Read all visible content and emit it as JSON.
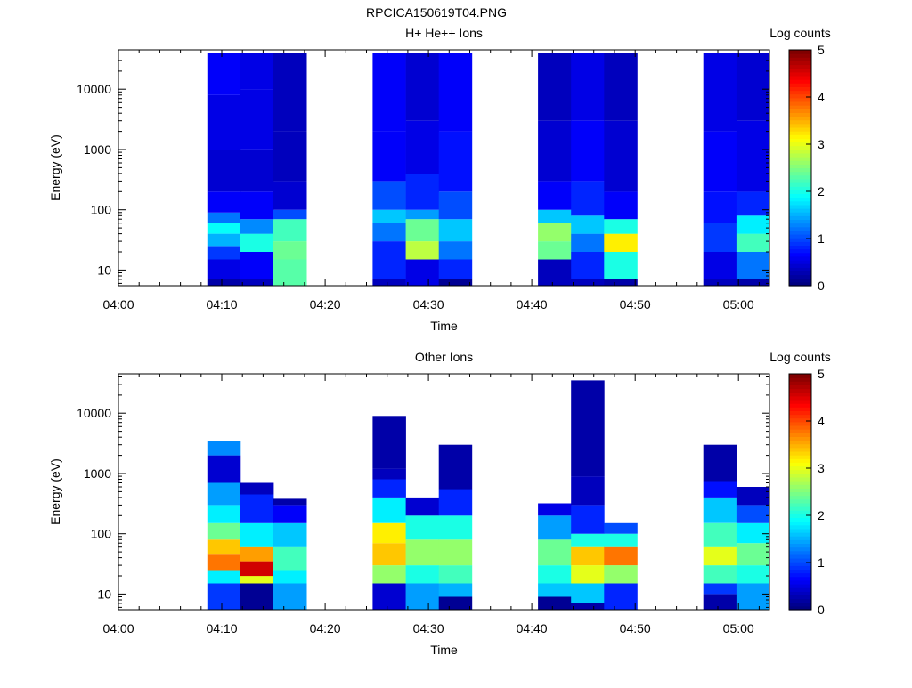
{
  "title": "RPCICA150619T04.PNG",
  "chart_data": [
    {
      "type": "heatmap",
      "title": "H+ He++ Ions",
      "xlabel": "Time",
      "ylabel": "Energy (eV)",
      "yscale": "log",
      "ylim": [
        5.5,
        45000
      ],
      "xlim": [
        "04:00",
        "05:03"
      ],
      "xticks": [
        "04:00",
        "04:10",
        "04:20",
        "04:30",
        "04:40",
        "04:50",
        "05:00"
      ],
      "yticks": [
        "10",
        "100",
        "1000",
        "10000"
      ],
      "colorbar": {
        "label": "Log counts",
        "min": 0,
        "max": 5,
        "ticks": [
          "0",
          "1",
          "2",
          "3",
          "4",
          "5"
        ]
      },
      "columns": [
        {
          "t0": "04:08.6",
          "t1": "04:11.8",
          "bands": [
            [
              7,
              0.2
            ],
            [
              15,
              0.5
            ],
            [
              25,
              0.9
            ],
            [
              40,
              1.5
            ],
            [
              60,
              1.9
            ],
            [
              90,
              1.2
            ],
            [
              200,
              0.6
            ],
            [
              1000,
              0.4
            ],
            [
              8000,
              0.5
            ],
            [
              40000,
              0.6
            ]
          ]
        },
        {
          "t0": "04:11.8",
          "t1": "04:15.0",
          "bands": [
            [
              7,
              0.3
            ],
            [
              20,
              0.6
            ],
            [
              40,
              2.0
            ],
            [
              70,
              1.3
            ],
            [
              200,
              0.6
            ],
            [
              1000,
              0.4
            ],
            [
              10000,
              0.5
            ],
            [
              40000,
              0.5
            ]
          ]
        },
        {
          "t0": "04:15.0",
          "t1": "04:18.2",
          "bands": [
            [
              15,
              2.3
            ],
            [
              30,
              2.4
            ],
            [
              70,
              2.2
            ],
            [
              100,
              1.0
            ],
            [
              300,
              0.4
            ],
            [
              2000,
              0.3
            ],
            [
              40000,
              0.3
            ]
          ]
        },
        {
          "t0": "04:24.6",
          "t1": "04:27.8",
          "bands": [
            [
              7,
              0.3
            ],
            [
              30,
              0.8
            ],
            [
              60,
              1.2
            ],
            [
              100,
              1.6
            ],
            [
              300,
              1.0
            ],
            [
              2000,
              0.6
            ],
            [
              40000,
              0.6
            ]
          ]
        },
        {
          "t0": "04:27.8",
          "t1": "04:31.0",
          "bands": [
            [
              15,
              0.5
            ],
            [
              30,
              2.8
            ],
            [
              70,
              2.4
            ],
            [
              100,
              1.4
            ],
            [
              400,
              0.8
            ],
            [
              3000,
              0.5
            ],
            [
              40000,
              0.4
            ]
          ]
        },
        {
          "t0": "04:31.0",
          "t1": "04:34.2",
          "bands": [
            [
              7,
              0.1
            ],
            [
              15,
              0.8
            ],
            [
              30,
              1.2
            ],
            [
              70,
              1.6
            ],
            [
              200,
              1.0
            ],
            [
              2000,
              0.7
            ],
            [
              40000,
              0.6
            ]
          ]
        },
        {
          "t0": "04:40.6",
          "t1": "04:43.8",
          "bands": [
            [
              15,
              0.3
            ],
            [
              30,
              2.4
            ],
            [
              60,
              2.6
            ],
            [
              100,
              1.6
            ],
            [
              300,
              0.6
            ],
            [
              3000,
              0.4
            ],
            [
              40000,
              0.3
            ]
          ]
        },
        {
          "t0": "04:43.8",
          "t1": "04:47.0",
          "bands": [
            [
              7,
              0.3
            ],
            [
              20,
              0.8
            ],
            [
              40,
              1.2
            ],
            [
              80,
              1.6
            ],
            [
              300,
              0.8
            ],
            [
              3000,
              0.6
            ],
            [
              40000,
              0.5
            ]
          ]
        },
        {
          "t0": "04:47.0",
          "t1": "04:50.2",
          "bands": [
            [
              7,
              0.2
            ],
            [
              20,
              2.0
            ],
            [
              40,
              3.2
            ],
            [
              70,
              2.0
            ],
            [
              200,
              0.6
            ],
            [
              3000,
              0.4
            ],
            [
              40000,
              0.3
            ]
          ]
        },
        {
          "t0": "04:56.6",
          "t1": "04:59.8",
          "bands": [
            [
              7,
              0.3
            ],
            [
              20,
              0.5
            ],
            [
              60,
              0.9
            ],
            [
              200,
              0.7
            ],
            [
              2000,
              0.6
            ],
            [
              40000,
              0.5
            ]
          ]
        },
        {
          "t0": "04:59.8",
          "t1": "05:03.0",
          "bands": [
            [
              7,
              0.2
            ],
            [
              20,
              1.2
            ],
            [
              40,
              2.2
            ],
            [
              80,
              1.8
            ],
            [
              200,
              0.8
            ],
            [
              3000,
              0.5
            ],
            [
              40000,
              0.4
            ]
          ]
        }
      ]
    },
    {
      "type": "heatmap",
      "title": "Other Ions",
      "xlabel": "Time",
      "ylabel": "Energy (eV)",
      "yscale": "log",
      "ylim": [
        5.5,
        45000
      ],
      "xlim": [
        "04:00",
        "05:03"
      ],
      "xticks": [
        "04:00",
        "04:10",
        "04:20",
        "04:30",
        "04:40",
        "04:50",
        "05:00"
      ],
      "yticks": [
        "10",
        "100",
        "1000",
        "10000"
      ],
      "colorbar": {
        "label": "Log counts",
        "min": 0,
        "max": 5,
        "ticks": [
          "0",
          "1",
          "2",
          "3",
          "4",
          "5"
        ]
      },
      "columns": [
        {
          "t0": "04:08.6",
          "t1": "04:11.8",
          "bands": [
            [
              15,
              0.9
            ],
            [
              25,
              1.8
            ],
            [
              45,
              3.8
            ],
            [
              80,
              3.4
            ],
            [
              150,
              2.4
            ],
            [
              300,
              1.8
            ],
            [
              700,
              1.4
            ],
            [
              2000,
              0.4
            ],
            [
              3500,
              1.3
            ]
          ]
        },
        {
          "t0": "04:11.8",
          "t1": "04:15.0",
          "bands": [
            [
              15,
              0.1
            ],
            [
              20,
              3.0
            ],
            [
              35,
              4.6
            ],
            [
              60,
              3.6
            ],
            [
              150,
              1.8
            ],
            [
              450,
              0.8
            ],
            [
              700,
              0.3
            ]
          ]
        },
        {
          "t0": "04:15.0",
          "t1": "04:18.2",
          "bands": [
            [
              15,
              1.4
            ],
            [
              25,
              1.8
            ],
            [
              60,
              2.2
            ],
            [
              150,
              1.6
            ],
            [
              300,
              0.6
            ],
            [
              380,
              0.2
            ]
          ]
        },
        {
          "t0": "04:24.6",
          "t1": "04:27.8",
          "bands": [
            [
              15,
              0.4
            ],
            [
              30,
              2.6
            ],
            [
              70,
              3.4
            ],
            [
              150,
              3.2
            ],
            [
              400,
              1.8
            ],
            [
              800,
              0.8
            ],
            [
              1200,
              0.3
            ],
            [
              9000,
              0.2
            ]
          ]
        },
        {
          "t0": "04:27.8",
          "t1": "04:31.0",
          "bands": [
            [
              15,
              1.4
            ],
            [
              30,
              2.0
            ],
            [
              80,
              2.6
            ],
            [
              200,
              2.0
            ],
            [
              400,
              0.4
            ]
          ]
        },
        {
          "t0": "04:31.0",
          "t1": "04:34.2",
          "bands": [
            [
              9,
              0.1
            ],
            [
              15,
              1.5
            ],
            [
              30,
              2.2
            ],
            [
              80,
              2.6
            ],
            [
              200,
              2.0
            ],
            [
              550,
              0.8
            ],
            [
              3000,
              0.2
            ]
          ]
        },
        {
          "t0": "04:40.6",
          "t1": "04:43.8",
          "bands": [
            [
              9,
              0.1
            ],
            [
              15,
              1.6
            ],
            [
              30,
              2.0
            ],
            [
              80,
              2.4
            ],
            [
              200,
              1.4
            ],
            [
              320,
              0.5
            ]
          ]
        },
        {
          "t0": "04:43.8",
          "t1": "04:47.0",
          "bands": [
            [
              7,
              0.2
            ],
            [
              15,
              1.6
            ],
            [
              30,
              3.0
            ],
            [
              60,
              3.4
            ],
            [
              100,
              2.0
            ],
            [
              300,
              0.8
            ],
            [
              900,
              0.3
            ],
            [
              35000,
              0.2
            ]
          ]
        },
        {
          "t0": "04:47.0",
          "t1": "04:50.2",
          "bands": [
            [
              15,
              0.8
            ],
            [
              30,
              2.6
            ],
            [
              60,
              3.8
            ],
            [
              100,
              2.0
            ],
            [
              150,
              1.0
            ]
          ]
        },
        {
          "t0": "04:56.6",
          "t1": "04:59.8",
          "bands": [
            [
              10,
              0.2
            ],
            [
              15,
              0.9
            ],
            [
              30,
              2.2
            ],
            [
              60,
              3.0
            ],
            [
              150,
              2.2
            ],
            [
              400,
              1.6
            ],
            [
              750,
              0.7
            ],
            [
              3000,
              0.2
            ]
          ]
        },
        {
          "t0": "04:59.8",
          "t1": "05:03.0",
          "bands": [
            [
              15,
              1.4
            ],
            [
              30,
              2.0
            ],
            [
              70,
              2.4
            ],
            [
              150,
              1.8
            ],
            [
              300,
              1.0
            ],
            [
              600,
              0.3
            ]
          ]
        }
      ]
    }
  ]
}
